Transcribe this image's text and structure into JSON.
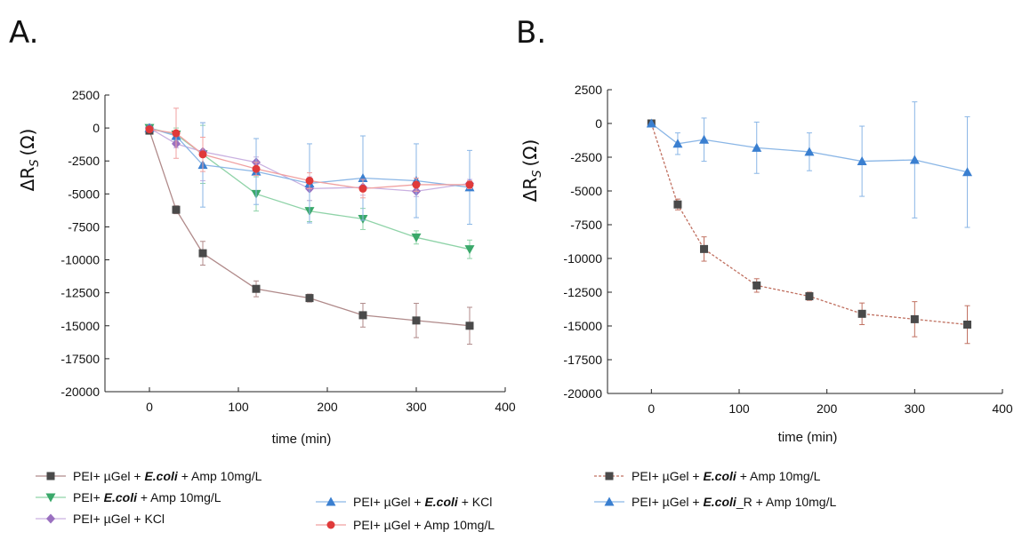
{
  "panels": [
    {
      "letter": "A.",
      "chart_data": {
        "type": "line",
        "xlabel": "time (min)",
        "ylabel_main": "ΔR",
        "ylabel_sub": "S",
        "ylabel_unit": "(Ω)",
        "xlim": [
          -50,
          400
        ],
        "ylim": [
          -20000,
          2500
        ],
        "xticks": [
          0,
          100,
          200,
          300,
          400
        ],
        "yticks": [
          2500,
          0,
          -2500,
          -5000,
          -7500,
          -10000,
          -12500,
          -15000,
          -17500,
          -20000
        ],
        "legend": "bottom",
        "series": [
          {
            "legend": {
              "pre": "PEI+ µGel + ",
              "italic": "E.coli",
              "post": " + Amp 10mg/L"
            },
            "color": "#4a4a4a",
            "line_color": "#b08a8a",
            "marker": "square",
            "dashed": false,
            "x": [
              0,
              30,
              60,
              120,
              180,
              240,
              300,
              360
            ],
            "y": [
              -200,
              -6200,
              -9500,
              -12200,
              -12900,
              -14200,
              -14600,
              -15000
            ],
            "err": [
              0,
              300,
              900,
              600,
              300,
              900,
              1300,
              1400
            ]
          },
          {
            "legend": {
              "pre": "PEI+ ",
              "italic": "E.coli",
              "post": " + Amp 10mg/L"
            },
            "color": "#3aa86a",
            "line_color": "#8fd3a8",
            "marker": "triangle-down",
            "dashed": false,
            "x": [
              0,
              30,
              60,
              120,
              180,
              240,
              300,
              360
            ],
            "y": [
              0,
              -500,
              -2000,
              -5000,
              -6300,
              -6900,
              -8300,
              -9200
            ],
            "err": [
              0,
              500,
              2200,
              1300,
              800,
              800,
              500,
              700
            ]
          },
          {
            "legend": {
              "pre": "PEI+ µGel + KCl",
              "italic": "",
              "post": ""
            },
            "color": "#9a70c0",
            "line_color": "#c9b0e0",
            "marker": "diamond",
            "dashed": false,
            "x": [
              0,
              30,
              60,
              120,
              180,
              240,
              300,
              360
            ],
            "y": [
              0,
              -1200,
              -1800,
              -2600,
              -4600,
              -4500,
              -4800,
              -4200
            ],
            "err": [
              0,
              300,
              2200,
              400,
              900,
              600,
              400,
              300
            ]
          },
          {
            "legend": {
              "pre": "PEI+ µGel + ",
              "italic": "E.coli",
              "post": " + KCl"
            },
            "color": "#3a7fd0",
            "line_color": "#8ab6e6",
            "marker": "triangle-up",
            "dashed": false,
            "x": [
              0,
              30,
              60,
              120,
              180,
              240,
              300,
              360
            ],
            "y": [
              0,
              -600,
              -2800,
              -3300,
              -4200,
              -3800,
              -4000,
              -4500
            ],
            "err": [
              0,
              300,
              3200,
              2500,
              3000,
              3200,
              2800,
              2800
            ]
          },
          {
            "legend": {
              "pre": "PEI+ µGel + Amp 10mg/L",
              "italic": "",
              "post": ""
            },
            "color": "#e03a3a",
            "line_color": "#f0a0a0",
            "marker": "circle",
            "dashed": false,
            "x": [
              0,
              30,
              60,
              120,
              180,
              240,
              300,
              360
            ],
            "y": [
              -100,
              -400,
              -2000,
              -3100,
              -4000,
              -4600,
              -4300,
              -4300
            ],
            "err": [
              0,
              1900,
              1300,
              500,
              600,
              700,
              500,
              300
            ]
          }
        ]
      }
    },
    {
      "letter": "B.",
      "chart_data": {
        "type": "line",
        "xlabel": "time (min)",
        "ylabel_main": "ΔR",
        "ylabel_sub": "S",
        "ylabel_unit": "(Ω)",
        "xlim": [
          -50,
          400
        ],
        "ylim": [
          -20000,
          2500
        ],
        "xticks": [
          0,
          100,
          200,
          300,
          400
        ],
        "yticks": [
          2500,
          0,
          -2500,
          -5000,
          -7500,
          -10000,
          -12500,
          -15000,
          -17500,
          -20000
        ],
        "legend": "bottom",
        "series": [
          {
            "legend": {
              "pre": "PEI+ µGel + ",
              "italic": "E.coli",
              "post": " + Amp 10mg/L"
            },
            "color": "#4a4a4a",
            "line_color": "#c07060",
            "marker": "square",
            "dashed": true,
            "x": [
              0,
              30,
              60,
              120,
              180,
              240,
              300,
              360
            ],
            "y": [
              0,
              -6000,
              -9300,
              -12000,
              -12800,
              -14100,
              -14500,
              -14900
            ],
            "err": [
              0,
              400,
              900,
              500,
              300,
              800,
              1300,
              1400
            ]
          },
          {
            "legend": {
              "pre": "PEI+ µGel + ",
              "italic": "E.coli",
              "post": "_R + Amp 10mg/L"
            },
            "color": "#3a7fd0",
            "line_color": "#8ab6e6",
            "marker": "triangle-up",
            "dashed": false,
            "x": [
              0,
              30,
              60,
              120,
              180,
              240,
              300,
              360
            ],
            "y": [
              0,
              -1500,
              -1200,
              -1800,
              -2100,
              -2800,
              -2700,
              -3600
            ],
            "err": [
              0,
              800,
              1600,
              1900,
              1400,
              2600,
              4300,
              4100
            ]
          }
        ]
      }
    }
  ]
}
